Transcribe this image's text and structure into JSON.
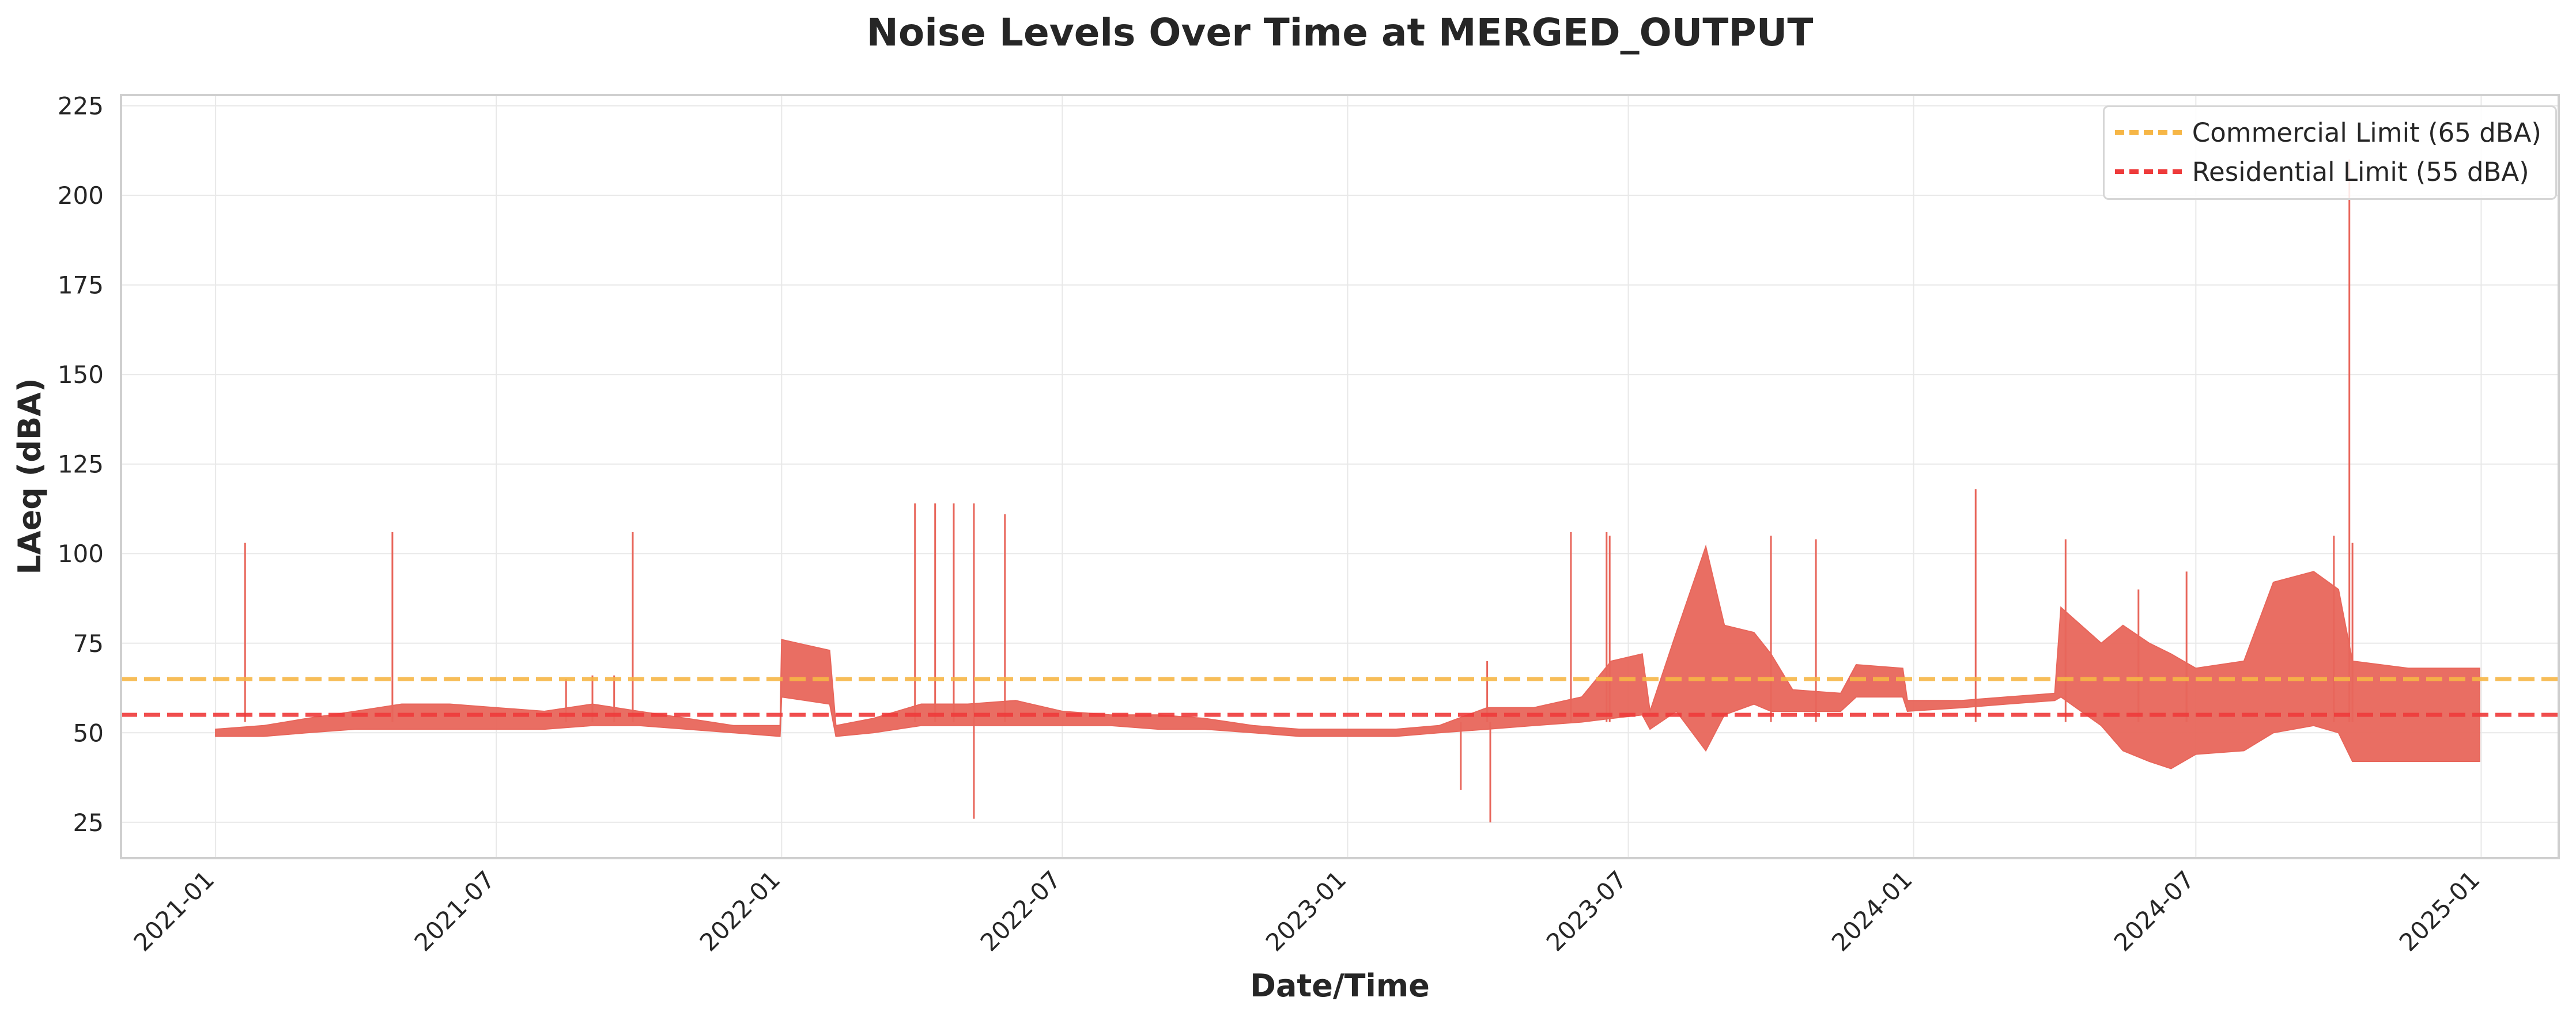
{
  "chart_data": {
    "type": "line",
    "title": "Noise Levels Over Time at MERGED_OUTPUT",
    "xlabel": "Date/Time",
    "ylabel": "LAeq (dBA)",
    "xlim": [
      "2020-11-01",
      "2025-02-20"
    ],
    "ylim": [
      15,
      228
    ],
    "x_ticks": [
      "2021-01",
      "2021-07",
      "2022-01",
      "2022-07",
      "2023-01",
      "2023-07",
      "2024-01",
      "2024-07",
      "2025-01"
    ],
    "y_ticks": [
      25,
      50,
      75,
      100,
      125,
      150,
      175,
      200,
      225
    ],
    "grid": true,
    "legend_position": "top-right",
    "series": [
      {
        "type": "band",
        "color": "#e8665b",
        "points": [
          [
            "2021-01-01",
            49,
            51
          ],
          [
            "2021-02-01",
            49,
            52
          ],
          [
            "2021-03-01",
            50,
            54
          ],
          [
            "2021-04-01",
            51,
            56
          ],
          [
            "2021-05-01",
            51,
            58
          ],
          [
            "2021-06-01",
            51,
            58
          ],
          [
            "2021-07-01",
            51,
            57
          ],
          [
            "2021-08-01",
            51,
            56
          ],
          [
            "2021-09-01",
            52,
            58
          ],
          [
            "2021-10-01",
            52,
            56
          ],
          [
            "2021-11-01",
            51,
            54
          ],
          [
            "2021-12-01",
            50,
            52
          ],
          [
            "2021-12-31",
            49,
            52
          ],
          [
            "2022-01-01",
            60,
            76
          ],
          [
            "2022-02-01",
            58,
            73
          ],
          [
            "2022-02-05",
            49,
            52
          ],
          [
            "2022-03-01",
            50,
            54
          ],
          [
            "2022-04-01",
            52,
            58
          ],
          [
            "2022-05-01",
            52,
            58
          ],
          [
            "2022-06-01",
            52,
            59
          ],
          [
            "2022-07-01",
            52,
            56
          ],
          [
            "2022-08-01",
            52,
            55
          ],
          [
            "2022-09-01",
            51,
            55
          ],
          [
            "2022-10-01",
            51,
            54
          ],
          [
            "2022-11-01",
            50,
            52
          ],
          [
            "2022-12-01",
            49,
            51
          ],
          [
            "2023-01-01",
            49,
            51
          ],
          [
            "2023-02-01",
            49,
            51
          ],
          [
            "2023-03-01",
            50,
            52
          ],
          [
            "2023-04-01",
            51,
            57
          ],
          [
            "2023-05-01",
            52,
            57
          ],
          [
            "2023-06-01",
            53,
            60
          ],
          [
            "2023-06-20",
            54,
            70
          ],
          [
            "2023-07-10",
            55,
            72
          ],
          [
            "2023-07-15",
            51,
            56
          ],
          [
            "2023-08-01",
            56,
            78
          ],
          [
            "2023-08-20",
            45,
            102
          ],
          [
            "2023-09-01",
            55,
            80
          ],
          [
            "2023-09-20",
            58,
            78
          ],
          [
            "2023-10-01",
            56,
            72
          ],
          [
            "2023-10-15",
            56,
            62
          ],
          [
            "2023-11-15",
            56,
            61
          ],
          [
            "2023-11-25",
            60,
            69
          ],
          [
            "2023-12-25",
            60,
            68
          ],
          [
            "2023-12-28",
            56,
            59
          ],
          [
            "2024-02-01",
            57,
            59
          ],
          [
            "2024-03-01",
            58,
            60
          ],
          [
            "2024-04-01",
            59,
            61
          ],
          [
            "2024-04-05",
            60,
            85
          ],
          [
            "2024-05-01",
            52,
            75
          ],
          [
            "2024-05-15",
            45,
            80
          ],
          [
            "2024-06-01",
            42,
            75
          ],
          [
            "2024-06-15",
            40,
            72
          ],
          [
            "2024-07-01",
            44,
            68
          ],
          [
            "2024-08-01",
            45,
            70
          ],
          [
            "2024-08-20",
            50,
            92
          ],
          [
            "2024-09-15",
            52,
            95
          ],
          [
            "2024-10-01",
            50,
            90
          ],
          [
            "2024-10-10",
            42,
            70
          ],
          [
            "2024-11-15",
            42,
            68
          ],
          [
            "2024-12-31",
            42,
            68
          ]
        ],
        "spikes": [
          [
            "2021-01-20",
            103
          ],
          [
            "2021-04-25",
            106
          ],
          [
            "2021-08-15",
            65
          ],
          [
            "2021-09-01",
            66
          ],
          [
            "2021-09-15",
            66
          ],
          [
            "2021-09-27",
            106
          ],
          [
            "2022-03-28",
            114
          ],
          [
            "2022-04-10",
            114
          ],
          [
            "2022-04-22",
            114
          ],
          [
            "2022-05-05",
            114
          ],
          [
            "2022-05-05",
            26
          ],
          [
            "2022-05-25",
            111
          ],
          [
            "2023-03-15",
            34
          ],
          [
            "2023-04-01",
            70
          ],
          [
            "2023-04-03",
            25
          ],
          [
            "2023-05-25",
            106
          ],
          [
            "2023-06-17",
            106
          ],
          [
            "2023-06-19",
            105
          ],
          [
            "2023-10-01",
            105
          ],
          [
            "2023-10-30",
            104
          ],
          [
            "2024-02-10",
            118
          ],
          [
            "2024-04-08",
            104
          ],
          [
            "2024-05-25",
            90
          ],
          [
            "2024-06-25",
            95
          ],
          [
            "2024-09-28",
            105
          ],
          [
            "2024-10-08",
            210
          ],
          [
            "2024-10-10",
            103
          ]
        ]
      }
    ],
    "reference_lines": [
      {
        "label": "Commercial Limit (65 dBA)",
        "y": 65,
        "color": "#f6b646",
        "style": "dashed"
      },
      {
        "label": "Residential Limit (55 dBA)",
        "y": 55,
        "color": "#ee3b3b",
        "style": "dashed"
      }
    ]
  }
}
